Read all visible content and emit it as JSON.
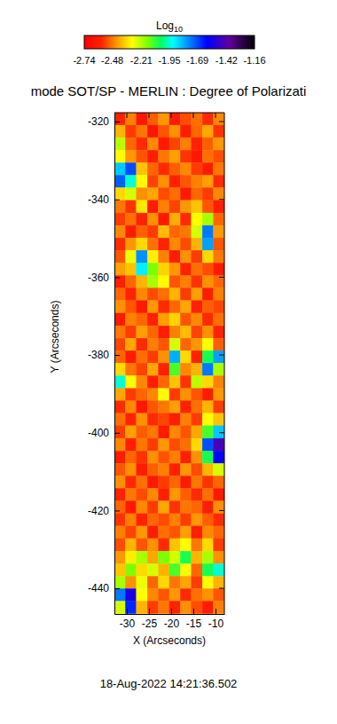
{
  "chart_data": {
    "type": "heatmap",
    "title": "mode SOT/SP - MERLIN : Degree of Polarizati",
    "xlabel": "X (Arcseconds)",
    "ylabel": "Y (Arcseconds)",
    "annotations": [
      "18-Aug-2022 14:21:36.502"
    ],
    "x": [
      -31.56,
      -29.08,
      -26.6,
      -24.12,
      -21.64,
      -19.16,
      -16.68,
      -14.2,
      -11.72,
      -9.24
    ],
    "y": [
      -319.3,
      -322.5,
      -325.7,
      -329.0,
      -332.2,
      -335.4,
      -338.6,
      -341.9,
      -345.1,
      -348.3,
      -351.5,
      -354.7,
      -358.0,
      -361.2,
      -364.4,
      -367.6,
      -370.9,
      -374.1,
      -377.3,
      -380.5,
      -383.7,
      -387.0,
      -390.2,
      -393.4,
      -396.6,
      -399.8,
      -403.1,
      -406.3,
      -409.5,
      -412.7,
      -415.9,
      -419.2,
      -422.4,
      -425.6,
      -428.8,
      -432.1,
      -435.3,
      -438.5,
      -441.7,
      -444.9
    ],
    "z": [
      [
        -2.58,
        -2.47,
        -2.62,
        -2.51,
        -2.44,
        -2.6,
        -2.53,
        -2.49,
        -2.57,
        -2.46
      ],
      [
        -2.4,
        -2.55,
        -2.48,
        -2.63,
        -2.52,
        -2.45,
        -2.59,
        -2.5,
        -2.42,
        -2.56
      ],
      [
        -2.22,
        -2.5,
        -2.57,
        -2.46,
        -2.61,
        -2.54,
        -2.47,
        -2.58,
        -2.51,
        -2.44
      ],
      [
        -2.3,
        -2.44,
        -2.52,
        -2.59,
        -2.48,
        -2.43,
        -2.56,
        -2.62,
        -2.49,
        -2.53
      ],
      [
        -1.85,
        -1.7,
        -2.38,
        -2.5,
        -2.57,
        -2.51,
        -2.46,
        -2.55,
        -2.6,
        -2.48
      ],
      [
        -1.72,
        -1.95,
        -2.3,
        -2.54,
        -2.45,
        -2.58,
        -2.52,
        -2.47,
        -2.43,
        -2.57
      ],
      [
        -2.35,
        -2.25,
        -2.45,
        -2.42,
        -2.53,
        -2.49,
        -2.61,
        -2.5,
        -2.55,
        -2.46
      ],
      [
        -2.48,
        -2.56,
        -2.33,
        -2.6,
        -2.47,
        -2.54,
        -2.44,
        -2.38,
        -2.52,
        -2.59
      ],
      [
        -2.55,
        -2.49,
        -2.58,
        -2.45,
        -2.62,
        -2.41,
        -2.57,
        -2.3,
        -2.2,
        -2.5
      ],
      [
        -2.46,
        -2.6,
        -2.51,
        -2.55,
        -2.39,
        -2.5,
        -2.48,
        -2.25,
        -1.75,
        -2.44
      ],
      [
        -2.57,
        -2.44,
        -2.35,
        -2.49,
        -2.58,
        -2.46,
        -2.53,
        -2.4,
        -1.8,
        -2.52
      ],
      [
        -2.52,
        -2.28,
        -1.78,
        -2.32,
        -2.47,
        -2.6,
        -2.45,
        -2.55,
        -2.35,
        -2.48
      ],
      [
        -2.43,
        -2.38,
        -1.9,
        -2.15,
        -2.36,
        -2.44,
        -2.58,
        -2.49,
        -2.53,
        -2.61
      ],
      [
        -2.59,
        -2.5,
        -2.4,
        -2.2,
        -2.3,
        -2.52,
        -2.47,
        -2.56,
        -2.45,
        -2.5
      ],
      [
        -2.5,
        -2.58,
        -2.46,
        -2.53,
        -2.49,
        -2.4,
        -2.55,
        -2.43,
        -2.6,
        -2.47
      ],
      [
        -2.45,
        -2.52,
        -2.61,
        -2.44,
        -2.57,
        -2.5,
        -2.42,
        -2.58,
        -2.51,
        -2.54
      ],
      [
        -2.61,
        -2.47,
        -2.5,
        -2.58,
        -2.43,
        -2.36,
        -2.52,
        -2.46,
        -2.57,
        -2.49
      ],
      [
        -2.48,
        -2.55,
        -2.43,
        -2.5,
        -2.6,
        -2.47,
        -2.39,
        -2.54,
        -2.45,
        -2.58
      ],
      [
        -2.54,
        -2.42,
        -2.57,
        -2.47,
        -2.52,
        -2.25,
        -2.5,
        -2.44,
        -2.3,
        -2.51
      ],
      [
        -2.5,
        -2.6,
        -2.49,
        -2.55,
        -2.45,
        -1.82,
        -2.35,
        -2.58,
        -2.05,
        -1.8
      ],
      [
        -2.35,
        -2.48,
        -2.54,
        -2.42,
        -2.58,
        -2.1,
        -2.46,
        -2.4,
        -1.75,
        -2.2
      ],
      [
        -1.95,
        -2.3,
        -2.46,
        -2.59,
        -2.5,
        -2.38,
        -2.56,
        -2.22,
        -2.35,
        -2.47
      ],
      [
        -2.42,
        -2.55,
        -2.5,
        -2.46,
        -2.3,
        -2.55,
        -2.45,
        -2.52,
        -2.6,
        -2.44
      ],
      [
        -2.57,
        -2.46,
        -2.62,
        -2.52,
        -2.48,
        -2.43,
        -2.58,
        -2.49,
        -2.4,
        -2.55
      ],
      [
        -2.49,
        -2.58,
        -2.45,
        -2.57,
        -2.54,
        -2.6,
        -2.47,
        -2.55,
        -2.3,
        -2.38
      ],
      [
        -2.55,
        -2.43,
        -2.51,
        -2.48,
        -2.61,
        -2.46,
        -2.52,
        -2.42,
        -2.1,
        -1.85
      ],
      [
        -2.46,
        -2.59,
        -2.48,
        -2.55,
        -2.44,
        -2.53,
        -2.49,
        -2.35,
        -1.7,
        -1.45
      ],
      [
        -2.6,
        -2.5,
        -2.56,
        -2.45,
        -2.52,
        -2.47,
        -2.58,
        -2.45,
        -2.05,
        -1.6
      ],
      [
        -2.52,
        -2.45,
        -2.6,
        -2.51,
        -2.47,
        -2.58,
        -2.44,
        -2.53,
        -2.4,
        -2.25
      ],
      [
        -2.45,
        -2.57,
        -2.49,
        -2.62,
        -2.55,
        -2.5,
        -2.61,
        -2.48,
        -2.56,
        -2.5
      ],
      [
        -2.58,
        -2.48,
        -2.53,
        -2.46,
        -2.59,
        -2.44,
        -2.51,
        -2.57,
        -2.49,
        -2.62
      ],
      [
        -2.5,
        -2.61,
        -2.46,
        -2.55,
        -2.42,
        -2.56,
        -2.48,
        -2.5,
        -2.59,
        -2.45
      ],
      [
        -2.56,
        -2.47,
        -2.58,
        -2.5,
        -2.53,
        -2.47,
        -2.55,
        -2.44,
        -2.51,
        -2.57
      ],
      [
        -2.47,
        -2.54,
        -2.44,
        -2.6,
        -2.49,
        -2.52,
        -2.43,
        -2.59,
        -2.46,
        -2.5
      ],
      [
        -2.53,
        -2.4,
        -2.52,
        -2.45,
        -2.57,
        -2.38,
        -2.3,
        -2.48,
        -2.35,
        -2.55
      ],
      [
        -2.44,
        -2.32,
        -2.2,
        -2.42,
        -2.15,
        -2.25,
        -2.05,
        -2.4,
        -2.2,
        -2.45
      ],
      [
        -2.38,
        -2.15,
        -2.35,
        -2.25,
        -2.4,
        -2.1,
        -2.3,
        -2.5,
        -2.05,
        -1.95
      ],
      [
        -2.2,
        -2.45,
        -2.28,
        -2.5,
        -2.35,
        -2.48,
        -2.42,
        -2.55,
        -2.3,
        -2.4
      ],
      [
        -1.75,
        -1.55,
        -2.3,
        -2.46,
        -2.52,
        -2.44,
        -2.57,
        -2.49,
        -2.45,
        -2.52
      ],
      [
        -2.25,
        -1.65,
        -2.4,
        -2.55,
        -2.48,
        -2.58,
        -2.45,
        -2.53,
        -2.6,
        -2.47
      ]
    ],
    "xlim": [
      -32.8,
      -8.0
    ],
    "ylim": [
      -317.7,
      -446.6
    ],
    "xticks": [
      -30,
      -25,
      -20,
      -15,
      -10
    ],
    "yticks": [
      -320,
      -340,
      -360,
      -380,
      -400,
      -420,
      -440
    ],
    "colorbar": {
      "title": "Log10",
      "range": [
        -2.74,
        -1.16
      ],
      "ticks": [
        -2.74,
        -2.48,
        -2.21,
        -1.95,
        -1.69,
        -1.42,
        -1.16
      ]
    }
  }
}
